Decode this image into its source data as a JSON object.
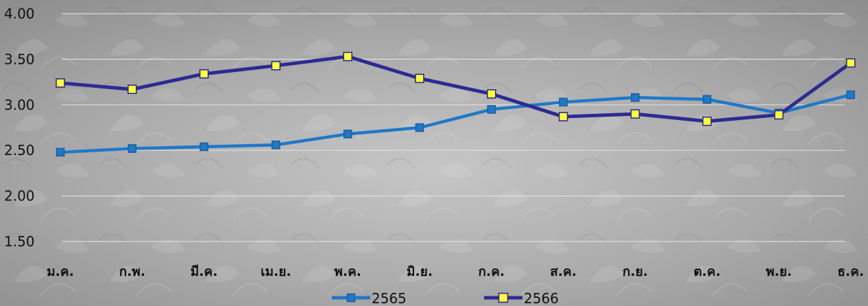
{
  "chart_data": {
    "type": "line",
    "categories": [
      "ม.ค.",
      "ก.พ.",
      "มี.ค.",
      "เม.ย.",
      "พ.ค.",
      "มิ.ย.",
      "ก.ค.",
      "ส.ค.",
      "ก.ย.",
      "ต.ค.",
      "พ.ย.",
      "ธ.ค."
    ],
    "series": [
      {
        "name": "2565",
        "values": [
          2.48,
          2.52,
          2.54,
          2.56,
          2.68,
          2.75,
          2.95,
          3.03,
          3.08,
          3.06,
          2.91,
          3.11
        ],
        "color": "#1f78c8",
        "marker": "square",
        "marker_color": "#1f78c8"
      },
      {
        "name": "2566",
        "values": [
          3.24,
          3.17,
          3.34,
          3.43,
          3.53,
          3.29,
          3.12,
          2.87,
          2.9,
          2.82,
          2.89,
          3.46
        ],
        "color": "#2e2a93",
        "marker": "square",
        "marker_color": "#ffff33"
      }
    ],
    "y_ticks": [
      "1.50",
      "2.00",
      "2.50",
      "3.00",
      "3.50",
      "4.00"
    ],
    "ylim": [
      1.5,
      4.0
    ],
    "grid": true,
    "legend_position": "bottom",
    "background": "photo of cassava leaves (grayscale)"
  }
}
